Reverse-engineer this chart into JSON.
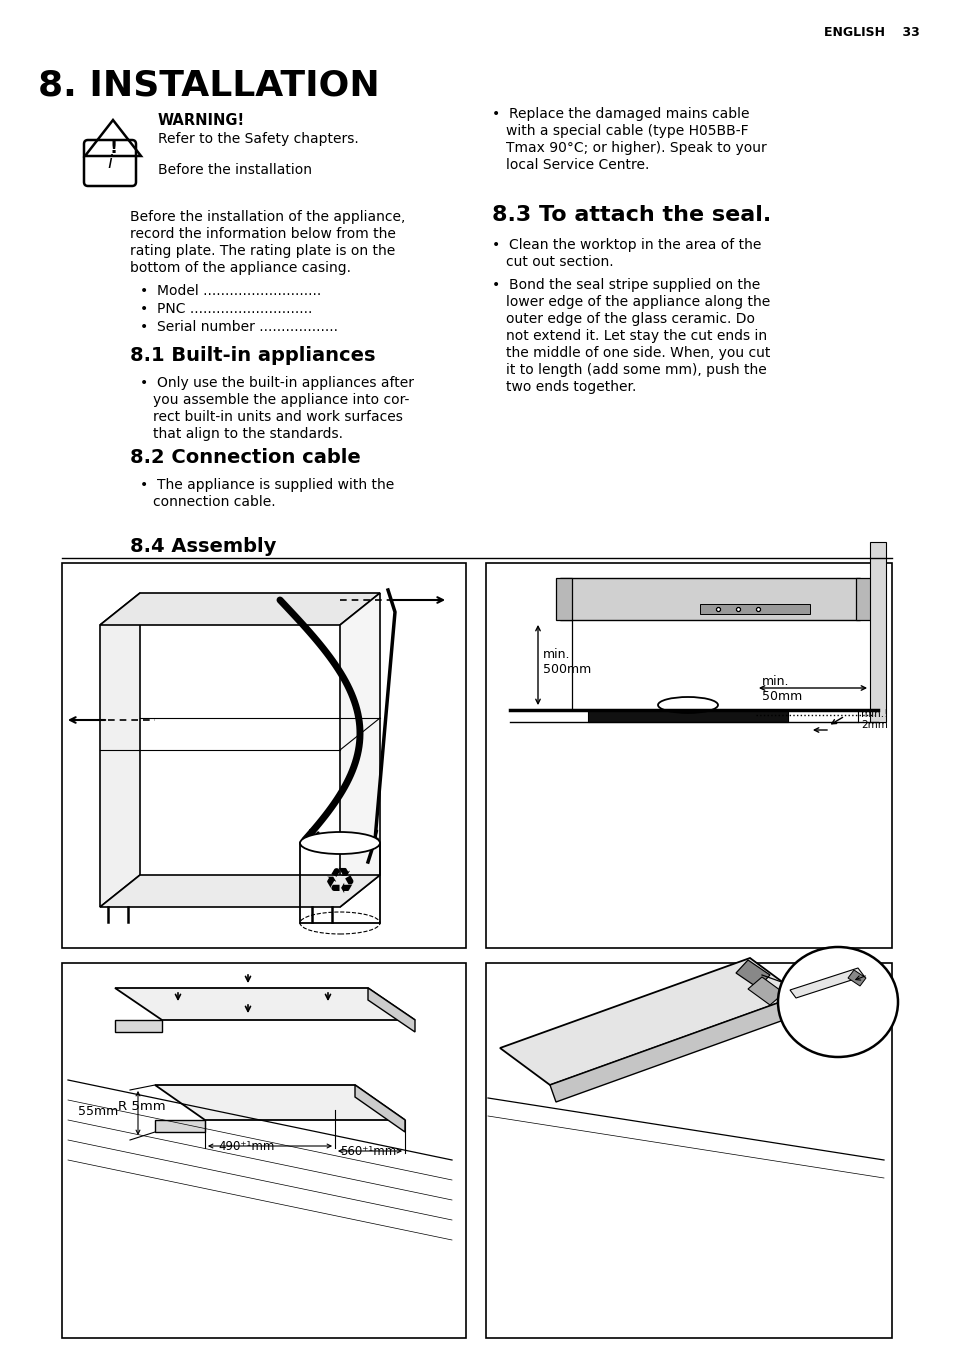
{
  "page_header": "ENGLISH    33",
  "main_title": "8. INSTALLATION",
  "warning_title": "WARNING!",
  "warning_body": "Refer to the Safety chapters.",
  "info_body": "Before the installation",
  "intro_lines": [
    "Before the installation of the appliance,",
    "record the information below from the",
    "rating plate. The rating plate is on the",
    "bottom of the appliance casing."
  ],
  "bullets_left": [
    "Model ...........................",
    "PNC ............................",
    "Serial number .................."
  ],
  "sec81": "8.1 Built-in appliances",
  "sec81_lines": [
    "Only use the built-in appliances after",
    "you assemble the appliance into cor-",
    "rect built-in units and work surfaces",
    "that align to the standards."
  ],
  "sec82": "8.2 Connection cable",
  "sec82_lines": [
    "The appliance is supplied with the",
    "connection cable."
  ],
  "sec84": "8.4 Assembly",
  "right_bullet_lines": [
    "Replace the damaged mains cable",
    "with a special cable (type H05BB-F",
    "Tmax 90°C; or higher). Speak to your",
    "local Service Centre."
  ],
  "sec83": "8.3 To attach the seal.",
  "sec83_b1_lines": [
    "Clean the worktop in the area of the",
    "cut out section."
  ],
  "sec83_b2_lines": [
    "Bond the seal stripe supplied on the",
    "lower edge of the appliance along the",
    "outer edge of the glass ceramic. Do",
    "not extend it. Let stay the cut ends in",
    "the middle of one side. When, you cut",
    "it to length (add some mm), push the",
    "two ends together."
  ]
}
